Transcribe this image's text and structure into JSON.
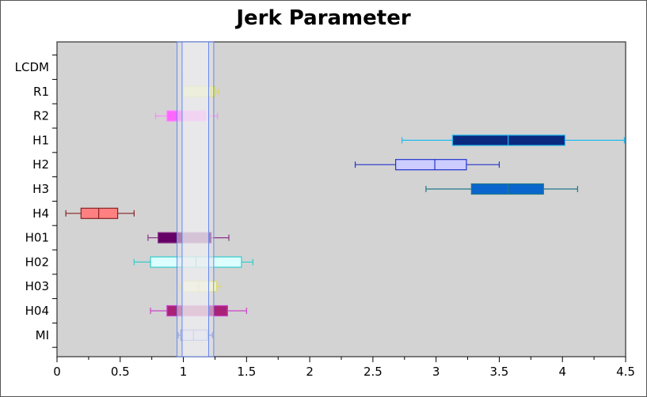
{
  "chart_data": {
    "type": "boxplot",
    "title": "Jerk Parameter",
    "xlabel": "",
    "ylabel": "",
    "xlim": [
      0,
      4.5
    ],
    "x_ticks": [
      "0",
      "0.5",
      "1",
      "1.5",
      "2",
      "2.5",
      "3",
      "3.5",
      "4",
      "4.5"
    ],
    "grid": false,
    "plot_background": "#d3d3d3",
    "categories": [
      "LCDM",
      "R1",
      "R2",
      "H1",
      "H2",
      "H3",
      "H4",
      "H01",
      "H02",
      "H03",
      "H04",
      "MI"
    ],
    "series": [
      {
        "label": "LCDM",
        "whisker_low": 1.0,
        "q1": 1.0,
        "median": 1.0,
        "q3": 1.0,
        "whisker_high": 1.0,
        "fill": "#ffffff",
        "stroke": "#dddddd"
      },
      {
        "label": "R1",
        "whisker_low": 1.0,
        "q1": 1.0,
        "median": 1.22,
        "q3": 1.25,
        "whisker_high": 1.28,
        "fill": "#f5f58a",
        "stroke": "#d9d95a"
      },
      {
        "label": "R2",
        "whisker_low": 0.78,
        "q1": 0.87,
        "median": 0.95,
        "q3": 1.18,
        "whisker_high": 1.27,
        "fill": "#ff66ff",
        "stroke": "#ff88ff"
      },
      {
        "label": "H1",
        "whisker_low": 2.73,
        "q1": 3.13,
        "median": 3.57,
        "q3": 4.02,
        "whisker_high": 4.49,
        "fill": "#0a2a80",
        "stroke": "#22bbee"
      },
      {
        "label": "H2",
        "whisker_low": 2.36,
        "q1": 2.68,
        "median": 2.99,
        "q3": 3.24,
        "whisker_high": 3.5,
        "fill": "#ccccff",
        "stroke": "#2233cc"
      },
      {
        "label": "H3",
        "whisker_low": 2.92,
        "q1": 3.28,
        "median": 3.57,
        "q3": 3.85,
        "whisker_high": 4.12,
        "fill": "#0a66cc",
        "stroke": "#227788"
      },
      {
        "label": "H4",
        "whisker_low": 0.07,
        "q1": 0.19,
        "median": 0.33,
        "q3": 0.48,
        "whisker_high": 0.61,
        "fill": "#ff8080",
        "stroke": "#882222"
      },
      {
        "label": "H01",
        "whisker_low": 0.72,
        "q1": 0.8,
        "median": 0.95,
        "q3": 1.22,
        "whisker_high": 1.36,
        "fill": "#660066",
        "stroke": "#883388"
      },
      {
        "label": "H02",
        "whisker_low": 0.61,
        "q1": 0.74,
        "median": 1.1,
        "q3": 1.46,
        "whisker_high": 1.55,
        "fill": "#ddffff",
        "stroke": "#33cccc"
      },
      {
        "label": "H03",
        "whisker_low": 0.98,
        "q1": 1.0,
        "median": 1.12,
        "q3": 1.26,
        "whisker_high": 1.3,
        "fill": "#ffffbb",
        "stroke": "#dddd66"
      },
      {
        "label": "H04",
        "whisker_low": 0.74,
        "q1": 0.87,
        "median": 1.2,
        "q3": 1.35,
        "whisker_high": 1.5,
        "fill": "#aa2277",
        "stroke": "#cc44cc"
      },
      {
        "label": "MI",
        "whisker_low": 0.96,
        "q1": 0.98,
        "median": 1.08,
        "q3": 1.19,
        "whisker_high": 1.23,
        "fill": "#ccccee",
        "stroke": "#4466cc"
      }
    ],
    "highlight_band": {
      "outer": [
        0.95,
        1.24
      ],
      "inner": [
        0.99,
        1.2
      ],
      "outer_fill": "#e4e4ec",
      "inner_fill": "#f0f0f0",
      "stroke": "#6688ee"
    }
  }
}
